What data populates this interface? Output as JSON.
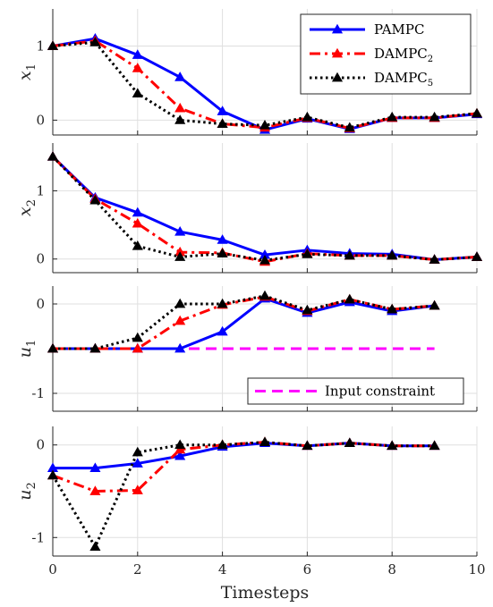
{
  "chart_data": {
    "type": "line",
    "xlabel": "Timesteps",
    "xlim": [
      0,
      10
    ],
    "x_ticks": [
      "0",
      "2",
      "4",
      "6",
      "8",
      "10"
    ],
    "grid": true,
    "colors": {
      "PAMPC": "#0000ff",
      "DAMPC2": "#ff0000",
      "DAMPC5": "#000000",
      "constraint": "#ff00ff"
    },
    "panels": [
      {
        "ylabel": {
          "main": "x",
          "sub": "1"
        },
        "ylim": [
          -0.2,
          1.5
        ],
        "yticks": [
          0,
          1
        ],
        "y_tick_labels": [
          "0",
          "1"
        ],
        "legend": {
          "location": "top-right",
          "entries": [
            {
              "key": "PAMPC",
              "main": "PAMPC",
              "sub": ""
            },
            {
              "key": "DAMPC2",
              "main": "DAMPC",
              "sub": "2"
            },
            {
              "key": "DAMPC5",
              "main": "DAMPC",
              "sub": "5"
            }
          ]
        },
        "series": [
          {
            "key": "PAMPC",
            "x": [
              0,
              1,
              2,
              3,
              4,
              5,
              6,
              7,
              8,
              9,
              10
            ],
            "values": [
              1.0,
              1.1,
              0.88,
              0.58,
              0.12,
              -0.13,
              0.02,
              -0.12,
              0.03,
              0.03,
              0.08
            ]
          },
          {
            "key": "DAMPC2",
            "x": [
              0,
              1,
              2,
              3,
              4,
              5,
              6,
              7,
              8,
              9,
              10
            ],
            "values": [
              1.0,
              1.07,
              0.7,
              0.16,
              -0.05,
              -0.1,
              0.03,
              -0.11,
              0.03,
              0.03,
              0.09
            ]
          },
          {
            "key": "DAMPC5",
            "x": [
              0,
              1,
              2,
              3,
              4,
              5,
              6,
              7,
              8,
              9,
              10
            ],
            "values": [
              1.0,
              1.05,
              0.36,
              0.0,
              -0.05,
              -0.07,
              0.04,
              -0.1,
              0.04,
              0.04,
              0.09
            ]
          }
        ]
      },
      {
        "ylabel": {
          "main": "x",
          "sub": "2"
        },
        "ylim": [
          -0.2,
          1.7
        ],
        "yticks": [
          0,
          1
        ],
        "y_tick_labels": [
          "0",
          "1"
        ],
        "series": [
          {
            "key": "PAMPC",
            "x": [
              0,
              1,
              2,
              3,
              4,
              5,
              6,
              7,
              8,
              9,
              10
            ],
            "values": [
              1.5,
              0.9,
              0.68,
              0.4,
              0.28,
              0.06,
              0.13,
              0.08,
              0.07,
              -0.01,
              0.03
            ]
          },
          {
            "key": "DAMPC2",
            "x": [
              0,
              1,
              2,
              3,
              4,
              5,
              6,
              7,
              8,
              9,
              10
            ],
            "values": [
              1.5,
              0.88,
              0.52,
              0.1,
              0.09,
              -0.04,
              0.08,
              0.05,
              0.05,
              -0.01,
              0.03
            ]
          },
          {
            "key": "DAMPC5",
            "x": [
              0,
              1,
              2,
              3,
              4,
              5,
              6,
              7,
              8,
              9,
              10
            ],
            "values": [
              1.5,
              0.86,
              0.19,
              0.03,
              0.08,
              -0.02,
              0.07,
              0.05,
              0.05,
              -0.01,
              0.03
            ]
          }
        ]
      },
      {
        "ylabel": {
          "main": "u",
          "sub": "1"
        },
        "ylim": [
          -1.2,
          0.2
        ],
        "yticks": [
          -1,
          0
        ],
        "y_tick_labels": [
          "-1",
          "0"
        ],
        "legend": {
          "location": "bottom-right",
          "entries": [
            {
              "key": "constraint",
              "main": "Input constraint",
              "sub": ""
            }
          ]
        },
        "constraint": {
          "x": [
            0,
            9
          ],
          "value": -0.5
        },
        "series": [
          {
            "key": "PAMPC",
            "x": [
              0,
              1,
              2,
              3,
              4,
              5,
              6,
              7,
              8,
              9
            ],
            "values": [
              -0.5,
              -0.5,
              -0.5,
              -0.5,
              -0.31,
              0.06,
              -0.1,
              0.02,
              -0.08,
              -0.02
            ]
          },
          {
            "key": "DAMPC2",
            "x": [
              0,
              1,
              2,
              3,
              4,
              5,
              6,
              7,
              8,
              9
            ],
            "values": [
              -0.5,
              -0.5,
              -0.5,
              -0.19,
              -0.01,
              0.08,
              -0.08,
              0.05,
              -0.06,
              -0.02
            ]
          },
          {
            "key": "DAMPC5",
            "x": [
              0,
              1,
              2,
              3,
              4,
              5,
              6,
              7,
              8,
              9
            ],
            "values": [
              -0.5,
              -0.5,
              -0.38,
              0.0,
              0.0,
              0.09,
              -0.07,
              0.05,
              -0.06,
              -0.02
            ]
          }
        ]
      },
      {
        "ylabel": {
          "main": "u",
          "sub": "2"
        },
        "ylim": [
          -1.2,
          0.2
        ],
        "yticks": [
          -1,
          0
        ],
        "y_tick_labels": [
          "-1",
          "0"
        ],
        "series": [
          {
            "key": "PAMPC",
            "x": [
              0,
              1,
              2,
              3,
              4,
              5,
              6,
              7,
              8,
              9
            ],
            "values": [
              -0.25,
              -0.25,
              -0.2,
              -0.12,
              -0.02,
              0.02,
              -0.01,
              0.02,
              -0.01,
              -0.01
            ]
          },
          {
            "key": "DAMPC2",
            "x": [
              0,
              1,
              2,
              3,
              4,
              5,
              6,
              7,
              8,
              9
            ],
            "values": [
              -0.33,
              -0.5,
              -0.49,
              -0.05,
              0.0,
              0.03,
              -0.01,
              0.02,
              -0.01,
              -0.01
            ]
          },
          {
            "key": "DAMPC5",
            "x": [
              0,
              1,
              2,
              3,
              4,
              5,
              6,
              7,
              8,
              9
            ],
            "values": [
              -0.33,
              -1.1,
              -0.08,
              0.0,
              0.0,
              0.03,
              -0.01,
              0.02,
              -0.01,
              -0.01
            ]
          }
        ]
      }
    ]
  }
}
